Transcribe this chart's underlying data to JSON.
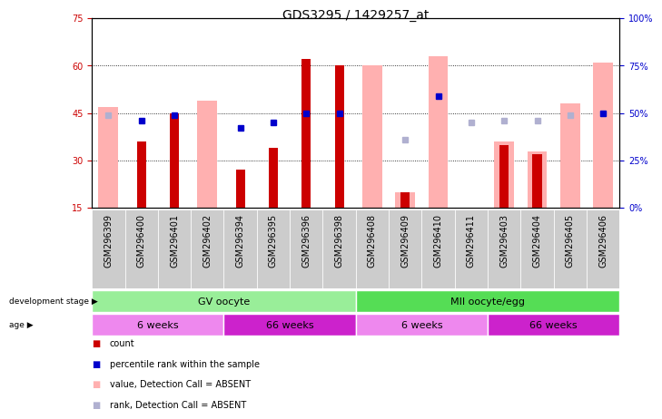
{
  "title": "GDS3295 / 1429257_at",
  "samples": [
    "GSM296399",
    "GSM296400",
    "GSM296401",
    "GSM296402",
    "GSM296394",
    "GSM296395",
    "GSM296396",
    "GSM296398",
    "GSM296408",
    "GSM296409",
    "GSM296410",
    "GSM296411",
    "GSM296403",
    "GSM296404",
    "GSM296405",
    "GSM296406"
  ],
  "count_values": [
    null,
    36,
    45,
    null,
    27,
    34,
    62,
    60,
    null,
    20,
    null,
    null,
    35,
    32,
    null,
    null
  ],
  "percentile_rank": [
    null,
    46,
    49,
    null,
    42,
    45,
    50,
    50,
    null,
    null,
    59,
    null,
    null,
    null,
    null,
    50
  ],
  "absent_value": [
    47,
    null,
    null,
    49,
    null,
    null,
    null,
    null,
    60,
    20,
    63,
    null,
    36,
    33,
    48,
    61
  ],
  "absent_rank": [
    49,
    null,
    null,
    null,
    null,
    null,
    null,
    null,
    null,
    36,
    null,
    45,
    46,
    46,
    49,
    50
  ],
  "ylim": [
    15,
    75
  ],
  "yticks_left": [
    15,
    30,
    45,
    60,
    75
  ],
  "yticks_right": [
    0,
    25,
    50,
    75,
    100
  ],
  "color_count": "#cc0000",
  "color_percentile": "#0000cc",
  "color_absent_value": "#ffb0b0",
  "color_absent_rank": "#b0b0d0",
  "color_gv": "#99ee99",
  "color_mii": "#55dd55",
  "color_6weeks_light": "#ee88ee",
  "color_66weeks_dark": "#cc22cc",
  "color_xtick_bg": "#cccccc",
  "title_fontsize": 10,
  "tick_fontsize": 7,
  "legend_fontsize": 7
}
